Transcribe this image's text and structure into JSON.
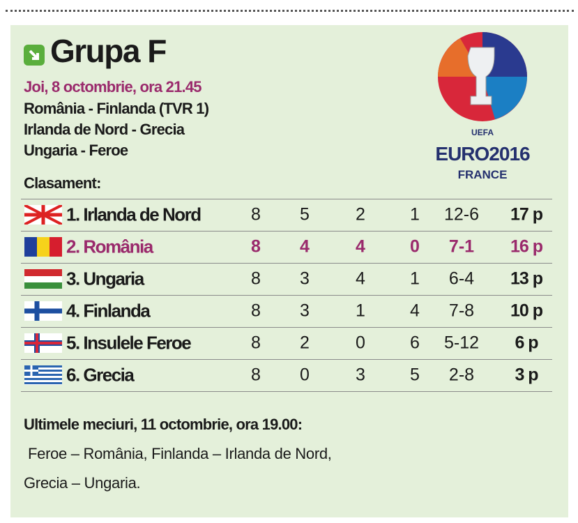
{
  "header": {
    "title": "Grupa F",
    "date": "Joi, 8 octombrie, ora 21.45",
    "matches": [
      "România - Finlanda (TVR 1)",
      "Irlanda de Nord - Grecia",
      "Ungaria - Feroe"
    ]
  },
  "logo": {
    "top": "UEFA",
    "main": "EURO2016",
    "bottom": "FRANCE"
  },
  "standings": {
    "label": "Clasament:",
    "rows": [
      [
        "1. Irlanda de Nord",
        8,
        5,
        2,
        1,
        "12-6",
        "17 p"
      ],
      [
        "2. România",
        8,
        4,
        4,
        0,
        "7-1",
        "16 p"
      ],
      [
        "3. Ungaria",
        8,
        3,
        4,
        1,
        "6-4",
        "13 p"
      ],
      [
        "4. Finlanda",
        8,
        3,
        1,
        4,
        "7-8",
        "10 p"
      ],
      [
        "5. Insulele Feroe",
        8,
        2,
        0,
        6,
        "5-12",
        "6 p"
      ],
      [
        "6. Grecia",
        8,
        0,
        3,
        5,
        "2-8",
        "3 p"
      ]
    ]
  },
  "footer": {
    "title": "Ultimele meciuri, 11 octombrie, ora 19.00:",
    "lines": [
      "Feroe – România, Finlanda – Irlanda de Nord,",
      "Grecia – Ungaria."
    ]
  }
}
